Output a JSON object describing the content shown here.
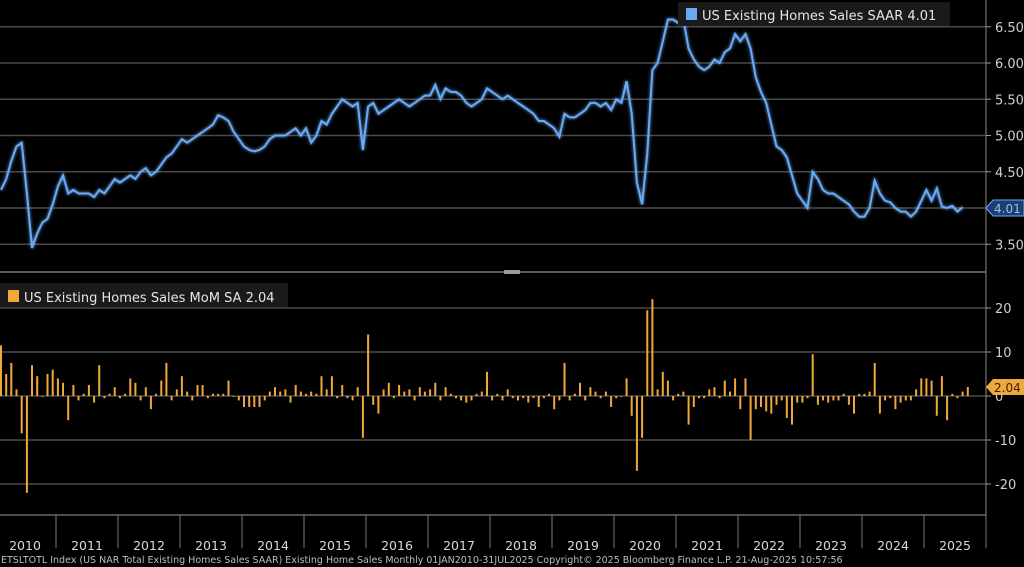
{
  "chart_data": [
    {
      "type": "line",
      "title": "US Existing Homes Sales SAAR",
      "legend": {
        "label": "US Existing Homes Sales SAAR 4.01",
        "placement": "top-right"
      },
      "last_value_label": "4.01",
      "color": "#5aa0f0",
      "unit": "millions (SAAR)",
      "x_start": "2010-01",
      "x_end": "2025-07",
      "frequency": "monthly",
      "ylim": [
        3.14,
        6.87
      ],
      "yticks": [
        "6.50",
        "6.00",
        "5.50",
        "5.00",
        "4.50",
        "4.00",
        "3.50"
      ],
      "ytick_values": [
        6.5,
        6.0,
        5.5,
        5.0,
        4.5,
        4.0,
        3.5
      ],
      "grid": true,
      "values": [
        4.25,
        4.4,
        4.65,
        4.85,
        4.9,
        4.2,
        3.45,
        3.65,
        3.8,
        3.85,
        4.05,
        4.3,
        4.45,
        4.2,
        4.25,
        4.2,
        4.2,
        4.2,
        4.15,
        4.25,
        4.2,
        4.3,
        4.4,
        4.35,
        4.4,
        4.45,
        4.4,
        4.5,
        4.55,
        4.45,
        4.5,
        4.6,
        4.7,
        4.75,
        4.85,
        4.95,
        4.9,
        4.95,
        5.0,
        5.05,
        5.1,
        5.15,
        5.28,
        5.25,
        5.2,
        5.05,
        4.95,
        4.85,
        4.8,
        4.78,
        4.8,
        4.85,
        4.95,
        5.0,
        5.0,
        5.0,
        5.05,
        5.1,
        5.0,
        5.1,
        4.9,
        5.0,
        5.2,
        5.15,
        5.3,
        5.4,
        5.5,
        5.45,
        5.4,
        5.45,
        4.8,
        5.4,
        5.45,
        5.3,
        5.35,
        5.4,
        5.45,
        5.5,
        5.45,
        5.4,
        5.45,
        5.5,
        5.55,
        5.55,
        5.7,
        5.5,
        5.65,
        5.6,
        5.6,
        5.55,
        5.45,
        5.4,
        5.45,
        5.5,
        5.65,
        5.6,
        5.55,
        5.5,
        5.55,
        5.5,
        5.45,
        5.4,
        5.35,
        5.3,
        5.2,
        5.2,
        5.15,
        5.1,
        4.98,
        5.3,
        5.25,
        5.25,
        5.3,
        5.35,
        5.45,
        5.45,
        5.4,
        5.45,
        5.35,
        5.5,
        5.45,
        5.75,
        5.3,
        4.35,
        4.05,
        4.75,
        5.9,
        6.0,
        6.3,
        6.6,
        6.6,
        6.55,
        6.6,
        6.2,
        6.05,
        5.95,
        5.9,
        5.95,
        6.05,
        6.0,
        6.15,
        6.2,
        6.4,
        6.3,
        6.4,
        6.2,
        5.8,
        5.6,
        5.45,
        5.15,
        4.85,
        4.8,
        4.7,
        4.45,
        4.2,
        4.1,
        4.0,
        4.5,
        4.4,
        4.25,
        4.2,
        4.2,
        4.15,
        4.1,
        4.05,
        3.95,
        3.88,
        3.88,
        4.0,
        4.38,
        4.2,
        4.1,
        4.08,
        4.0,
        3.95,
        3.95,
        3.88,
        3.95,
        4.1,
        4.25,
        4.1,
        4.27,
        4.02,
        4.0,
        4.03,
        3.95,
        4.01
      ]
    },
    {
      "type": "bar",
      "title": "US Existing Homes Sales MoM SA",
      "legend": {
        "label": "US Existing Homes Sales MoM SA 2.04",
        "placement": "top-left"
      },
      "last_value_label": "2.04",
      "color": "#f0a83c",
      "unit": "percent",
      "x_start": "2010-01",
      "x_end": "2025-07",
      "frequency": "monthly",
      "ylim": [
        -26,
        27
      ],
      "yticks": [
        "20",
        "10",
        "0",
        "-10",
        "-20"
      ],
      "ytick_values": [
        20,
        10,
        0,
        -10,
        -20
      ],
      "grid": true,
      "values": [
        11.5,
        5,
        7.5,
        1.5,
        -8.5,
        -22,
        7,
        4.5,
        0,
        5,
        6,
        4,
        3,
        -5.5,
        2.5,
        -1,
        0.5,
        2.5,
        -1.5,
        7,
        -0.5,
        0.5,
        2,
        -0.5,
        0.5,
        4,
        3,
        -1,
        2,
        -3,
        0.5,
        3.5,
        7.5,
        -1,
        1.5,
        4.5,
        1,
        -1,
        2.5,
        2.5,
        -0.5,
        0.5,
        0.5,
        0.5,
        3.5,
        0,
        -1,
        -2.5,
        -2.5,
        -2.5,
        -2.5,
        -1,
        1,
        2,
        1,
        1.5,
        -1.5,
        2.5,
        1,
        0.5,
        1,
        0.5,
        4.5,
        1.5,
        4.5,
        -0.5,
        2.5,
        -0.5,
        -1,
        2,
        -9.5,
        14,
        -2,
        -4,
        1.5,
        3,
        -0.5,
        2.5,
        1,
        1.5,
        -1,
        2,
        1,
        1.5,
        3,
        -1,
        2,
        0.5,
        -0.5,
        -1,
        -1.5,
        -1,
        0.5,
        1,
        5.5,
        -1,
        0.5,
        -1,
        1.5,
        -0.5,
        -1,
        -0.5,
        -1.5,
        -0.5,
        -2.5,
        -0.5,
        0.5,
        -3,
        -1,
        7.5,
        -1,
        0.5,
        3,
        -1,
        2,
        1,
        -0.5,
        1,
        -2.5,
        -0.5,
        0,
        4,
        -4.5,
        -17,
        -9.5,
        19.5,
        22,
        1.5,
        5.5,
        3.5,
        -1,
        0.5,
        1,
        -6.5,
        -2.5,
        -0.5,
        -0.5,
        1.5,
        2,
        -0.5,
        3.5,
        1,
        4,
        -3,
        4,
        -10,
        -3,
        -2.5,
        -3.5,
        -4,
        -2,
        -1,
        -5,
        -6.5,
        -1.5,
        -1.5,
        -0.5,
        9.5,
        -2,
        -1,
        -1.5,
        -1,
        -1,
        0.5,
        -2,
        -4,
        0.5,
        0.5,
        1,
        7.5,
        -4,
        -1,
        -0.5,
        -3,
        -1.5,
        -1,
        -1,
        1.5,
        4,
        4,
        3.5,
        -4.5,
        4.5,
        -5.5,
        0.5,
        -0.5,
        1,
        2.04
      ]
    }
  ],
  "x_axis": {
    "years": [
      "2010",
      "2011",
      "2012",
      "2013",
      "2014",
      "2015",
      "2016",
      "2017",
      "2018",
      "2019",
      "2020",
      "2021",
      "2022",
      "2023",
      "2024",
      "2025"
    ]
  },
  "footer": "ETSLTOTL Index (US NAR Total Existing Homes Sales SAAR) Existing Home Sales  Monthly 01JAN2010-31JUL2025    Copyright© 2025 Bloomberg Finance L.P.    21-Aug-2025 10:57:56"
}
